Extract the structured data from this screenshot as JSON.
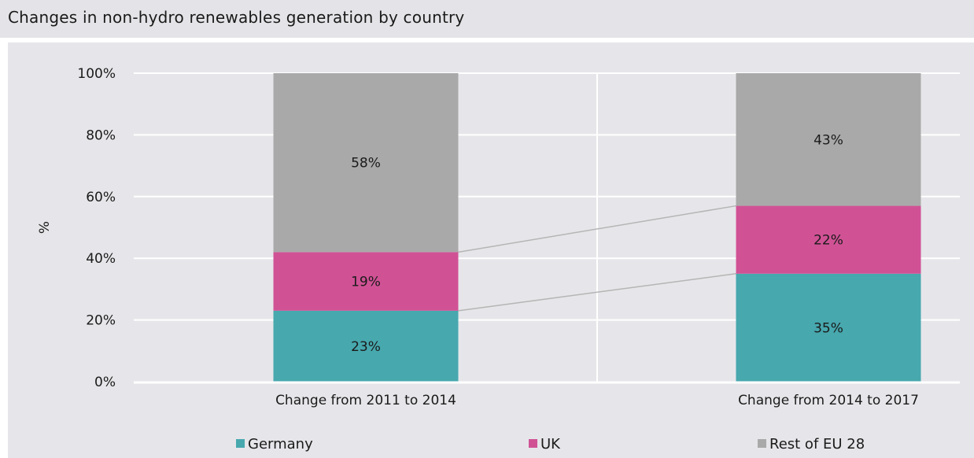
{
  "chart_data": {
    "type": "bar",
    "stacked": true,
    "title": "Changes in non-hydro renewables generation by country",
    "xlabel": "",
    "ylabel": "%",
    "ylim": [
      0,
      100
    ],
    "yticks": [
      "0%",
      "20%",
      "40%",
      "60%",
      "80%",
      "100%"
    ],
    "categories": [
      "Change from 2011 to 2014",
      "Change from 2014 to 2017"
    ],
    "series": [
      {
        "name": "Germany",
        "values": [
          23,
          35
        ],
        "labels": [
          "23%",
          "35%"
        ],
        "color": "#47a8ae"
      },
      {
        "name": "UK",
        "values": [
          19,
          22
        ],
        "labels": [
          "19%",
          "22%"
        ],
        "color": "#d05295"
      },
      {
        "name": "Rest of EU 28",
        "values": [
          58,
          43
        ],
        "labels": [
          "58%",
          "43%"
        ],
        "color": "#a9a9a9"
      }
    ],
    "connector_lines": true,
    "grid": true,
    "legend_position": "bottom"
  }
}
